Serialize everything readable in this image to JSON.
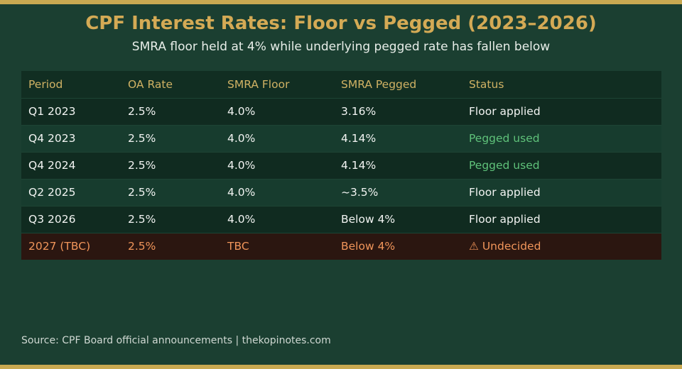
{
  "chart_data": {
    "type": "table",
    "title": "CPF Interest Rates: Floor vs Pegged (2023–2026)",
    "subtitle": "SMRA floor held at 4% while underlying pegged rate has fallen below",
    "columns": [
      "Period",
      "OA Rate",
      "SMRA Floor",
      "SMRA Pegged",
      "Status"
    ],
    "rows": [
      {
        "period": "Q1 2023",
        "oa_rate": "2.5%",
        "smra_floor": "4.0%",
        "smra_pegged": "3.16%",
        "status": "Floor applied",
        "kind": "floor"
      },
      {
        "period": "Q4 2023",
        "oa_rate": "2.5%",
        "smra_floor": "4.0%",
        "smra_pegged": "4.14%",
        "status": "Pegged used",
        "kind": "pegged"
      },
      {
        "period": "Q4 2024",
        "oa_rate": "2.5%",
        "smra_floor": "4.0%",
        "smra_pegged": "4.14%",
        "status": "Pegged used",
        "kind": "pegged"
      },
      {
        "period": "Q2 2025",
        "oa_rate": "2.5%",
        "smra_floor": "4.0%",
        "smra_pegged": "~3.5%",
        "status": "Floor applied",
        "kind": "floor"
      },
      {
        "period": "Q3 2026",
        "oa_rate": "2.5%",
        "smra_floor": "4.0%",
        "smra_pegged": "Below 4%",
        "status": "Floor applied",
        "kind": "floor"
      },
      {
        "period": "2027 (TBC)",
        "oa_rate": "2.5%",
        "smra_floor": "TBC",
        "smra_pegged": "Below 4%",
        "status": "⚠ Undecided",
        "kind": "alert"
      }
    ],
    "source": "Source: CPF Board official announcements  |  thekopinotes.com",
    "colors": {
      "background": "#1b3f31",
      "accent": "#c9a951",
      "title": "#d4aa55",
      "pegged_status": "#5fc27a",
      "alert_text": "#f0955a",
      "alert_row": "#2b1610"
    }
  }
}
